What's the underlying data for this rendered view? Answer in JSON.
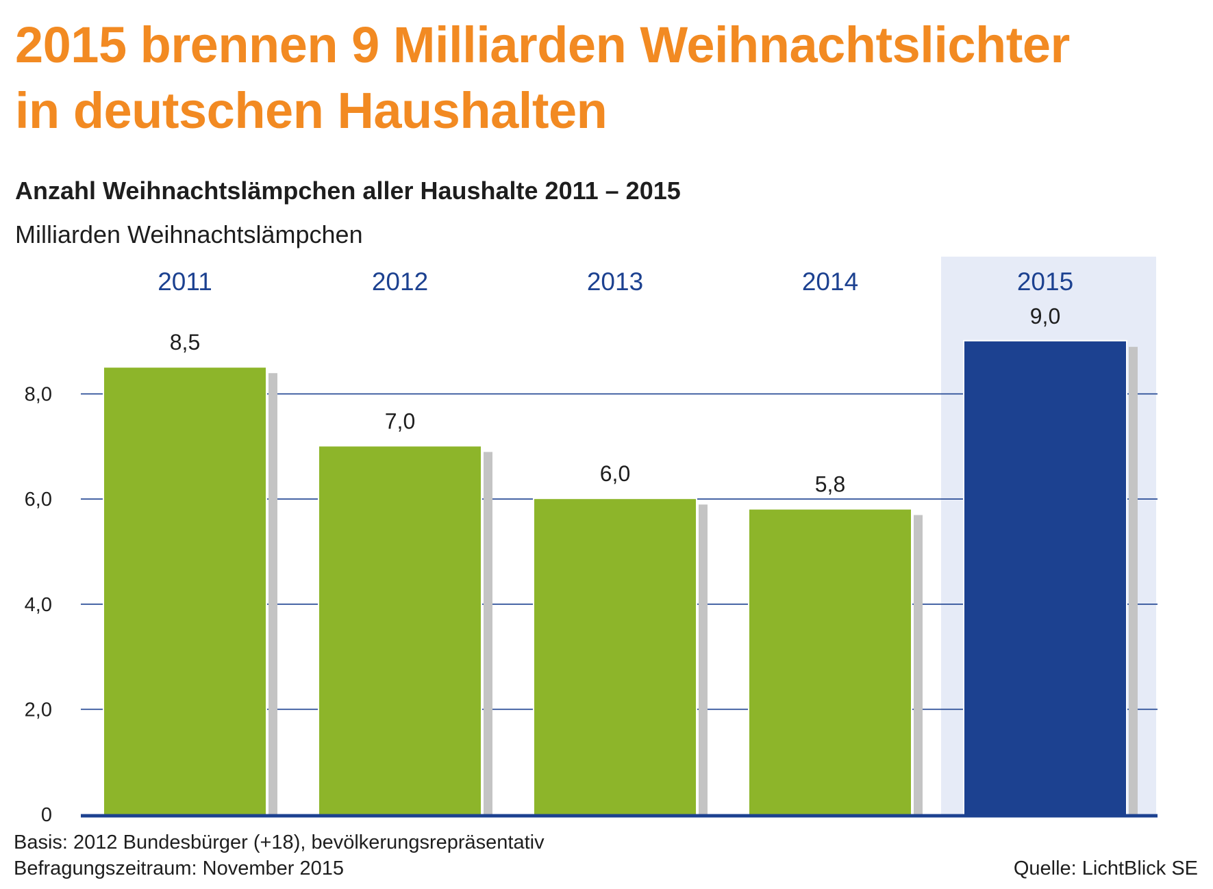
{
  "header": {
    "title_line1": "2015 brennen 9 Milliarden Weihnachtslichter",
    "title_line2": "in deutschen Haushalten",
    "subtitle": "Anzahl Weihnachtslämpchen aller Haushalte 2011 – 2015",
    "unit": "Milliarden Weihnachtslämpchen"
  },
  "chart_data": {
    "type": "bar",
    "categories": [
      "2011",
      "2012",
      "2013",
      "2014",
      "2015"
    ],
    "values": [
      8.5,
      7.0,
      6.0,
      5.8,
      9.0
    ],
    "value_labels": [
      "8,5",
      "7,0",
      "6,0",
      "5,8",
      "9,0"
    ],
    "highlight_index": 4,
    "yticks": [
      0,
      2,
      4,
      6,
      8
    ],
    "ytick_labels": [
      "0",
      "2,0",
      "4,0",
      "6,0",
      "8,0"
    ],
    "ylim": [
      0,
      9.0
    ],
    "grid": true,
    "category_labels_position": "top",
    "colors": {
      "bar": "#8db52a",
      "bar_highlight": "#1c4190",
      "shadow": "#c4c4c4",
      "highlight_background": "#e6ebf7",
      "grid": "#1c4190",
      "axis": "#1c4190",
      "category_label": "#1c4190"
    }
  },
  "footer": {
    "basis": "Basis: 2012 Bundesbürger (+18), bevölkerungsrepräsentativ",
    "period": "Befragungszeitraum: November 2015",
    "source": "Quelle: LichtBlick SE"
  }
}
